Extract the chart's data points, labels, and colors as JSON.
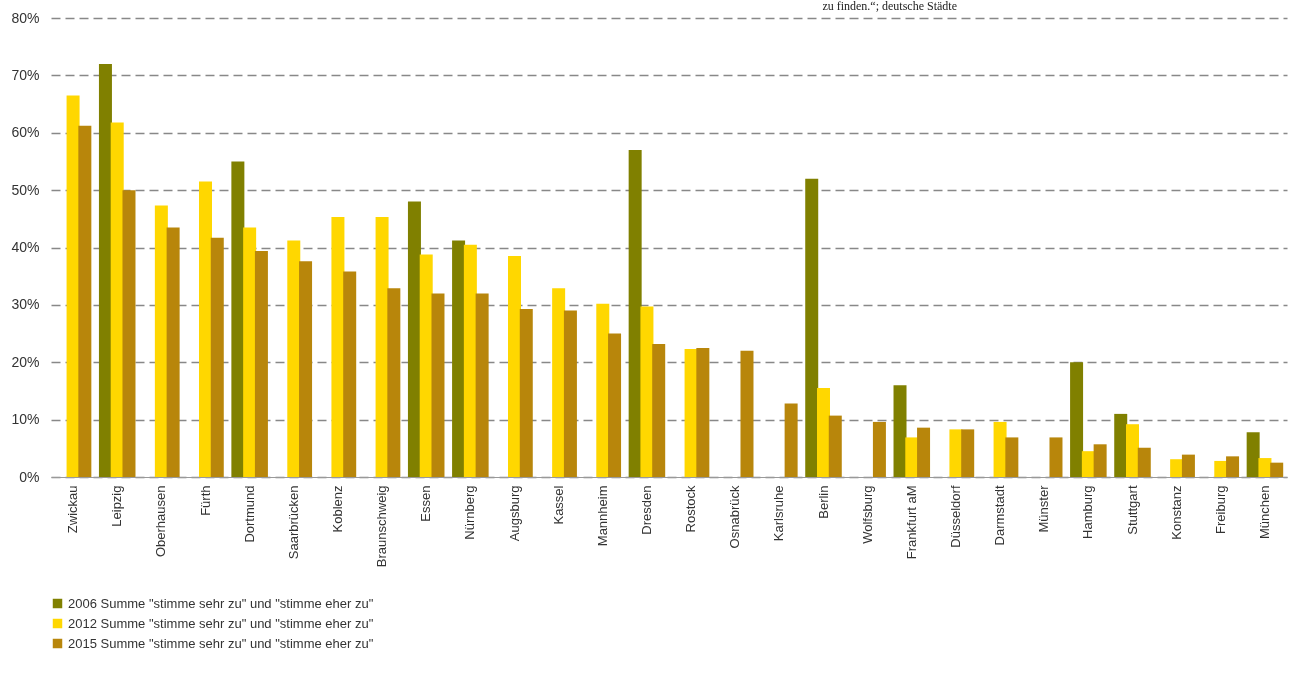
{
  "chart_data": {
    "type": "bar",
    "annotations": [
      "zu finden.“; deutsche Städte"
    ],
    "categories": [
      "Zwickau",
      "Leipzig",
      "Oberhausen",
      "Fürth",
      "Dortmund",
      "Saarbrücken",
      "Koblenz",
      "Braunschweig",
      "Essen",
      "Nürnberg",
      "Augsburg",
      "Kassel",
      "Mannheim",
      "Dresden",
      "Rostock",
      "Osnabrück",
      "Karlsruhe",
      "Berlin",
      "Wolfsburg",
      "Frankfurt aM",
      "Düsseldorf",
      "Darmstadt",
      "Münster",
      "Hamburg",
      "Stuttgart",
      "Konstanz",
      "Freiburg",
      "München"
    ],
    "series": [
      {
        "name": "2006 Summe \"stimme sehr zu\" und \"stimme eher zu\"",
        "color": "#808000",
        "values": [
          null,
          72,
          null,
          null,
          55,
          null,
          null,
          null,
          48,
          41.2,
          null,
          null,
          null,
          57,
          null,
          null,
          null,
          52,
          null,
          16,
          null,
          null,
          null,
          20,
          11,
          null,
          null,
          7.8
        ]
      },
      {
        "name": "2012 Summe \"stimme sehr zu\" und \"stimme eher zu\"",
        "color": "#ffd700",
        "values": [
          66.5,
          61.8,
          47.3,
          51.5,
          43.5,
          41.2,
          45.3,
          45.3,
          38.8,
          40.5,
          38.5,
          32.9,
          30.2,
          29.7,
          22.3,
          null,
          null,
          15.5,
          null,
          6.9,
          8.3,
          9.6,
          null,
          4.5,
          9.2,
          3.1,
          2.8,
          3.3
        ]
      },
      {
        "name": "2015 Summe \"stimme sehr zu\" und \"stimme eher zu\"",
        "color": "#b8860b",
        "values": [
          61.2,
          50,
          43.5,
          41.7,
          39.4,
          37.6,
          35.8,
          32.9,
          32,
          32,
          29.3,
          29,
          25,
          23.2,
          22.5,
          22,
          12.8,
          10.7,
          9.6,
          8.6,
          8.3,
          6.9,
          6.9,
          5.7,
          5.1,
          3.9,
          3.6,
          2.5
        ]
      }
    ],
    "ylim": [
      0,
      80
    ],
    "yticks": [
      {
        "value": 0,
        "label": "0%"
      },
      {
        "value": 10,
        "label": "10%"
      },
      {
        "value": 20,
        "label": "20%"
      },
      {
        "value": 30,
        "label": "30%"
      },
      {
        "value": 40,
        "label": "40%"
      },
      {
        "value": 50,
        "label": "50%"
      },
      {
        "value": 60,
        "label": "60%"
      },
      {
        "value": 70,
        "label": "70%"
      },
      {
        "value": 80,
        "label": "80%"
      }
    ],
    "grid": "y",
    "legend": "bottom"
  }
}
